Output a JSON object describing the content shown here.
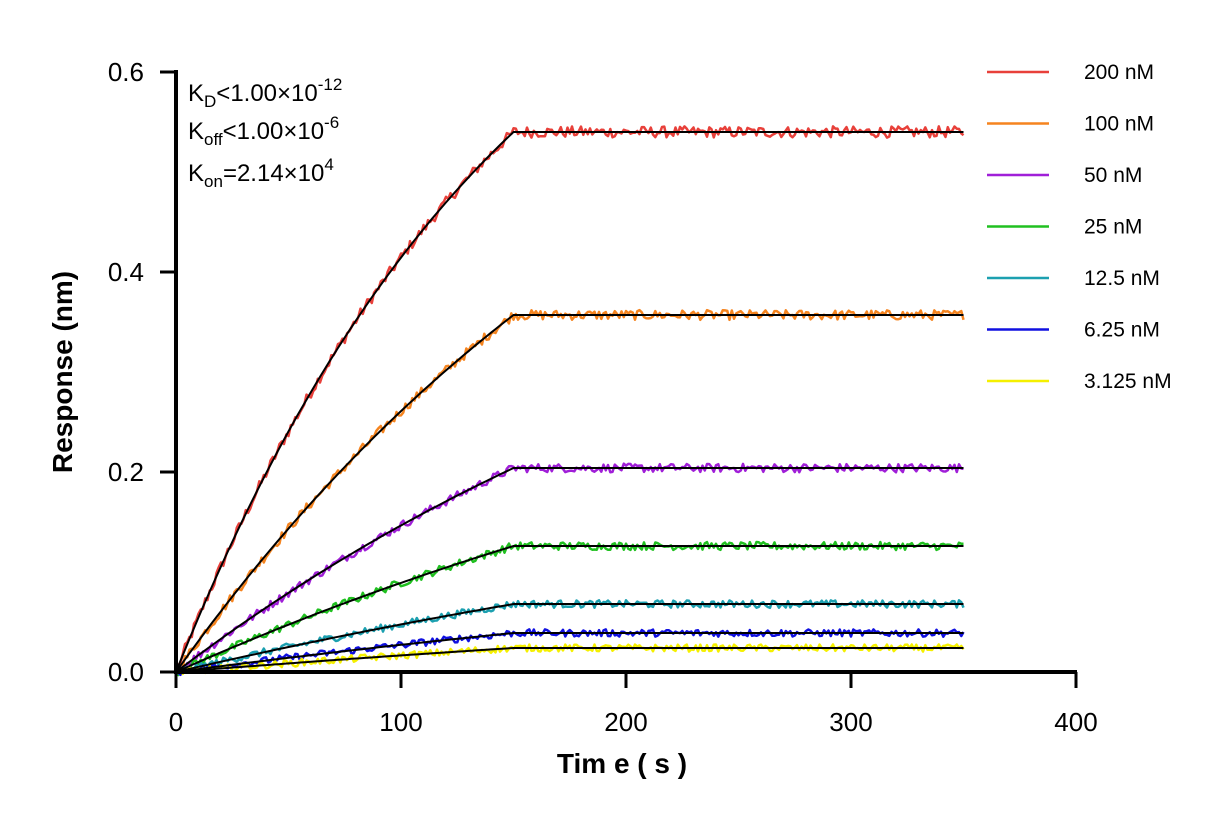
{
  "chart_data": {
    "type": "line",
    "xlabel": "Tim e ( s )",
    "ylabel": "Response (nm)",
    "xlim": [
      0,
      400
    ],
    "ylim": [
      0,
      0.6
    ],
    "x_ticks": [
      0,
      100,
      200,
      300,
      400
    ],
    "x_tick_labels": [
      "0",
      "100",
      "200",
      "300",
      "400"
    ],
    "y_ticks": [
      0.0,
      0.2,
      0.4,
      0.6
    ],
    "y_tick_labels": [
      "0.0",
      "0.2",
      "0.4",
      "0.6"
    ],
    "grid": false,
    "legend_position": "right",
    "association_end_s": 150,
    "dissociation_end_s": 350,
    "fit_color": "#000000",
    "series": [
      {
        "name": "200 nM",
        "color": "#E8403A",
        "plateau": 0.54
      },
      {
        "name": "100 nM",
        "color": "#F5841F",
        "plateau": 0.357
      },
      {
        "name": "50 nM",
        "color": "#A01FD8",
        "plateau": 0.204
      },
      {
        "name": "25 nM",
        "color": "#20C020",
        "plateau": 0.126
      },
      {
        "name": "12.5 nM",
        "color": "#1CA0B0",
        "plateau": 0.068
      },
      {
        "name": "6.25 nM",
        "color": "#1010E0",
        "plateau": 0.039
      },
      {
        "name": "3.125 nM",
        "color": "#F5F000",
        "plateau": 0.024
      }
    ],
    "annotations": {
      "kd": {
        "main": "K",
        "sub": "D",
        "rest": "<1.00×10",
        "sup": "-12"
      },
      "koff": {
        "main": "K",
        "sub": "off",
        "rest": "<1.00×10",
        "sup": "-6"
      },
      "kon": {
        "main": "K",
        "sub": "on",
        "rest": "=2.14×10",
        "sup": "4"
      }
    }
  }
}
